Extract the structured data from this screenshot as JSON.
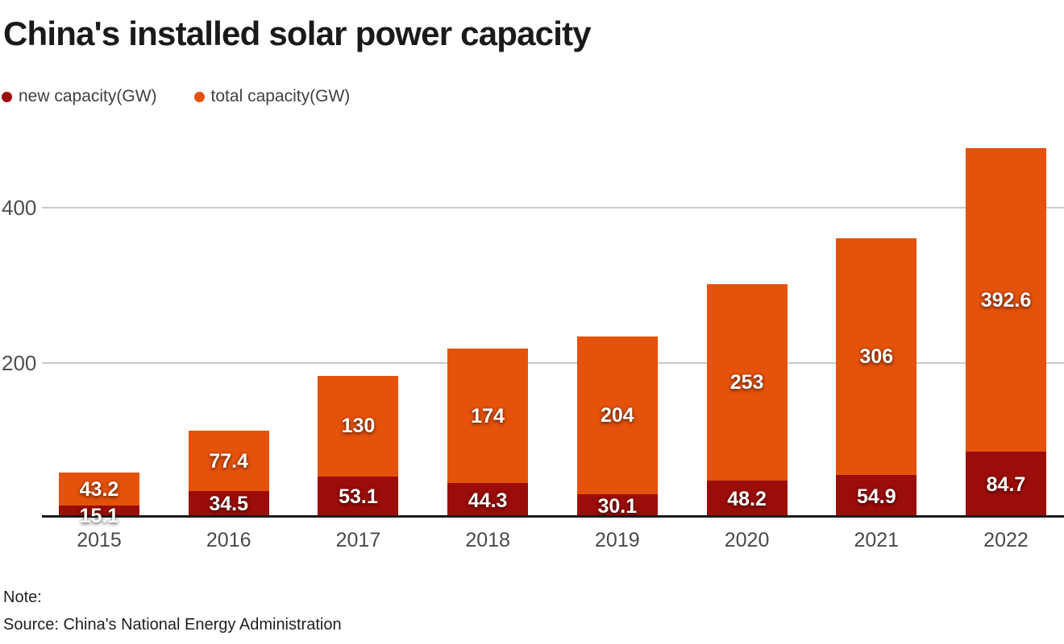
{
  "header": {
    "title": "China's installed solar power capacity"
  },
  "legend": [
    {
      "label": "new capacity(GW)",
      "color": "#9b0d0a"
    },
    {
      "label": "total capacity(GW)",
      "color": "#e4520b"
    }
  ],
  "footer": {
    "note_label": "Note:",
    "source": "Source: China's National Energy Administration"
  },
  "chart_data": {
    "type": "bar",
    "stacked": true,
    "title": "China's installed solar power capacity",
    "categories": [
      "2015",
      "2016",
      "2017",
      "2018",
      "2019",
      "2020",
      "2021",
      "2022"
    ],
    "series": [
      {
        "name": "new capacity(GW)",
        "color": "#9b0d0a",
        "values": [
          15.1,
          34.5,
          53.1,
          44.3,
          30.1,
          48.2,
          54.9,
          84.7
        ]
      },
      {
        "name": "total capacity(GW)",
        "color": "#e4520b",
        "values": [
          43.2,
          77.4,
          130,
          174,
          204,
          253,
          306,
          392.6
        ]
      }
    ],
    "xlabel": "",
    "ylabel": "",
    "ylim": [
      0,
      500
    ],
    "yticks": [
      200,
      400
    ],
    "grid": "horizontal",
    "legend_position": "top-left",
    "value_labels": "inside-segments",
    "colors": {
      "gridline": "#c9c9c9",
      "axis_line": "#1a1a1a",
      "value_label_text": "#ffffff",
      "tick_label_text": "#4d4d4d"
    }
  }
}
